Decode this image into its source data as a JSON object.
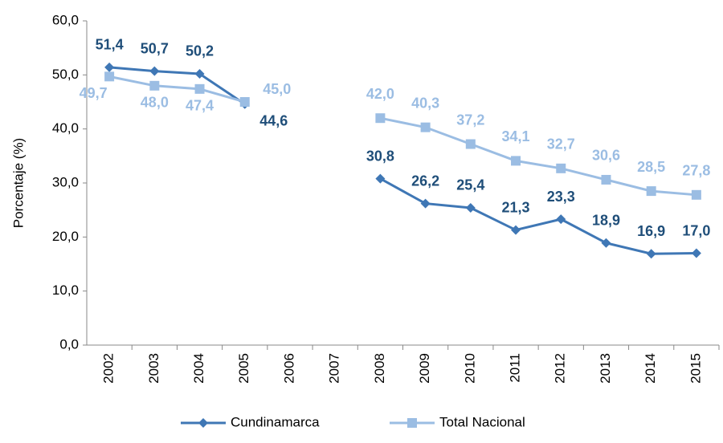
{
  "chart_data": {
    "type": "line",
    "y_label": "Porcentaje (%)",
    "categories": [
      "2002",
      "2003",
      "2004",
      "2005",
      "2006",
      "2007",
      "2008",
      "2009",
      "2010",
      "2011",
      "2012",
      "2013",
      "2014",
      "2015"
    ],
    "series": [
      {
        "name": "Cundinamarca",
        "color": "#3f77b5",
        "label_color": "#1f4e79",
        "marker": "diamond",
        "values": [
          51.4,
          50.7,
          50.2,
          44.6,
          null,
          null,
          30.8,
          26.2,
          25.4,
          21.3,
          23.3,
          18.9,
          16.9,
          17.0
        ],
        "value_labels": [
          "51,4",
          "50,7",
          "50,2",
          "44,6",
          null,
          null,
          "30,8",
          "26,2",
          "25,4",
          "21,3",
          "23,3",
          "18,9",
          "16,9",
          "17,0"
        ]
      },
      {
        "name": "Total Nacional",
        "color": "#9bbde3",
        "label_color": "#9bbde3",
        "marker": "square",
        "values": [
          49.7,
          48.0,
          47.4,
          45.0,
          null,
          null,
          42.0,
          40.3,
          37.2,
          34.1,
          32.7,
          30.6,
          28.5,
          27.8
        ],
        "value_labels": [
          "49,7",
          "48,0",
          "47,4",
          "45,0",
          null,
          null,
          "42,0",
          "40,3",
          "37,2",
          "34,1",
          "32,7",
          "30,6",
          "28,5",
          "27,8"
        ]
      }
    ],
    "ylim": [
      0,
      60
    ],
    "yticks": [
      {
        "value": 0,
        "label": "0,0"
      },
      {
        "value": 10,
        "label": "10,0"
      },
      {
        "value": 20,
        "label": "20,0"
      },
      {
        "value": 30,
        "label": "30,0"
      },
      {
        "value": 40,
        "label": "40,0"
      },
      {
        "value": 50,
        "label": "50,0"
      },
      {
        "value": 60,
        "label": "60,0"
      }
    ],
    "legend": "bottom"
  }
}
